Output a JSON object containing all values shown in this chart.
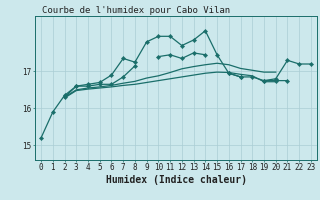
{
  "title": "Courbe de l'humidex pour Cabo Vilan",
  "xlabel": "Humidex (Indice chaleur)",
  "bg_color": "#cce8ec",
  "grid_color": "#aacdd4",
  "line_color": "#1a6e6a",
  "x_ticks": [
    0,
    1,
    2,
    3,
    4,
    5,
    6,
    7,
    8,
    9,
    10,
    11,
    12,
    13,
    14,
    15,
    16,
    17,
    18,
    19,
    20,
    21,
    22,
    23
  ],
  "y_ticks": [
    15,
    16,
    17
  ],
  "ylim": [
    14.6,
    18.5
  ],
  "xlim": [
    -0.5,
    23.5
  ],
  "series": [
    [
      15.2,
      15.9,
      16.35,
      16.6,
      16.65,
      16.7,
      16.9,
      17.35,
      17.25,
      17.8,
      17.95,
      17.95,
      17.7,
      17.85,
      18.1,
      17.45,
      16.95,
      16.85,
      16.85,
      16.75,
      16.8,
      17.3,
      17.2,
      17.2
    ],
    [
      null,
      null,
      16.3,
      16.6,
      16.6,
      16.65,
      16.65,
      16.85,
      17.15,
      null,
      17.4,
      17.45,
      17.35,
      17.5,
      17.45,
      null,
      16.95,
      16.85,
      null,
      16.75,
      16.75,
      16.75,
      null,
      null
    ],
    [
      null,
      null,
      16.3,
      16.5,
      16.55,
      16.58,
      16.62,
      16.68,
      16.73,
      16.82,
      16.88,
      16.97,
      17.07,
      17.13,
      17.18,
      17.22,
      17.18,
      17.08,
      17.03,
      16.98,
      16.98,
      null,
      null,
      null
    ],
    [
      null,
      null,
      16.28,
      16.48,
      16.52,
      16.55,
      16.58,
      16.62,
      16.65,
      16.7,
      16.75,
      16.8,
      16.85,
      16.9,
      16.95,
      16.98,
      16.97,
      16.92,
      16.88,
      16.72,
      16.72,
      null,
      null,
      null
    ]
  ],
  "markers": [
    true,
    true,
    false,
    false
  ],
  "marker_style": "D",
  "marker_size": 2.2,
  "linewidth": 0.9,
  "font_color": "#222222",
  "tick_fontsize": 5.5,
  "label_fontsize": 7.0,
  "title_fontsize": 6.5
}
